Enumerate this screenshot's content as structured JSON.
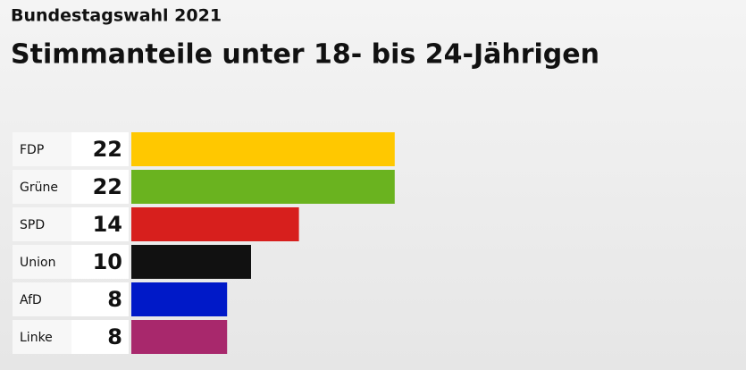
{
  "chart_data": {
    "type": "bar",
    "orientation": "horizontal",
    "subtitle": "Bundestagswahl 2021",
    "title": "Stimmanteile unter 18- bis 24-Jährigen",
    "categories": [
      "FDP",
      "Grüne",
      "SPD",
      "Union",
      "AfD",
      "Linke"
    ],
    "values": [
      22,
      22,
      14,
      10,
      8,
      8
    ],
    "colors": [
      "#ffc800",
      "#6ab31f",
      "#d71f1d",
      "#111111",
      "#0019c8",
      "#a8286c"
    ]
  }
}
